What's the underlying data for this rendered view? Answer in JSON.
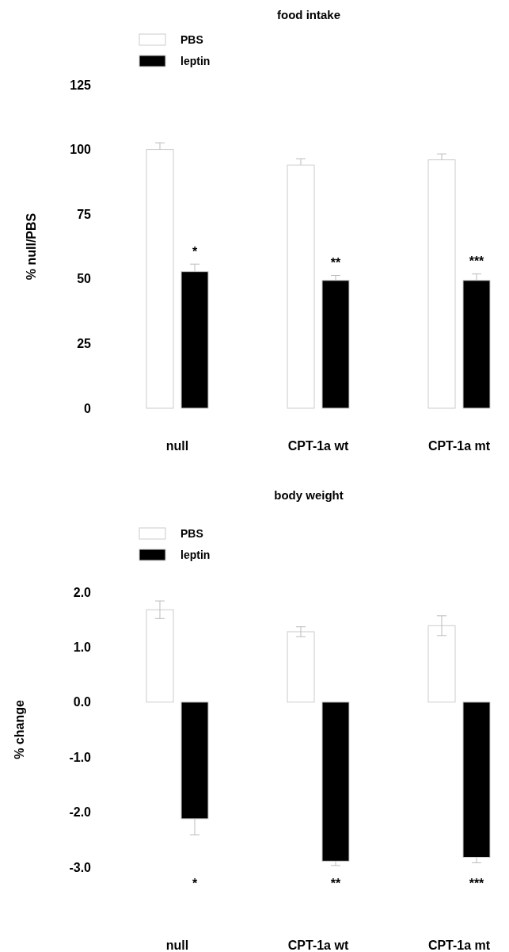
{
  "chart_data": [
    {
      "type": "bar",
      "title": "food intake",
      "ylabel": "% null/PBS",
      "categories": [
        "null",
        "CPT-1a wt",
        "CPT-1a mt"
      ],
      "series": [
        {
          "name": "PBS",
          "color": "#ffffff",
          "values": [
            100,
            94,
            96
          ],
          "errors": [
            [
              100,
              102.6
            ],
            [
              94,
              96.4
            ],
            [
              96,
              98.3
            ]
          ]
        },
        {
          "name": "leptin",
          "color": "#000000",
          "values": [
            52.8,
            49.4,
            49.4
          ],
          "errors": [
            [
              52.8,
              55.7
            ],
            [
              49.4,
              51.3
            ],
            [
              49.4,
              51.9
            ]
          ]
        }
      ],
      "ylim": [
        0,
        125
      ],
      "yticks": [
        0,
        25,
        50,
        75,
        100,
        125
      ],
      "legend": "top left",
      "grid": false,
      "annotations": [
        "*",
        "**",
        "***"
      ]
    },
    {
      "type": "bar",
      "title": "body weight",
      "ylabel": "% change",
      "categories": [
        "null",
        "CPT-1a wt",
        "CPT-1a mt"
      ],
      "series": [
        {
          "name": "PBS",
          "color": "#ffffff",
          "values": [
            1.68,
            1.28,
            1.39
          ],
          "errors": [
            0.16,
            0.09,
            0.18
          ]
        },
        {
          "name": "leptin",
          "color": "#000000",
          "values": [
            -2.12,
            -2.89,
            -2.82
          ],
          "errors": [
            [
              -2.41,
              -2.12
            ],
            [
              -2.97,
              -2.89
            ],
            [
              -2.92,
              -2.82
            ]
          ]
        }
      ],
      "ylim": [
        -3,
        2
      ],
      "yticks": [
        {
          "value": -3,
          "label": "-3.0"
        },
        {
          "value": -2,
          "label": "-2.0"
        },
        {
          "value": -1,
          "label": "-1.0"
        },
        {
          "value": 0,
          "label": "0.0"
        },
        {
          "value": 1,
          "label": "1.0"
        },
        {
          "value": 2,
          "label": "2.0"
        }
      ],
      "legend": "top left",
      "grid": false,
      "annotations": [
        "*",
        "**",
        "***"
      ]
    }
  ]
}
